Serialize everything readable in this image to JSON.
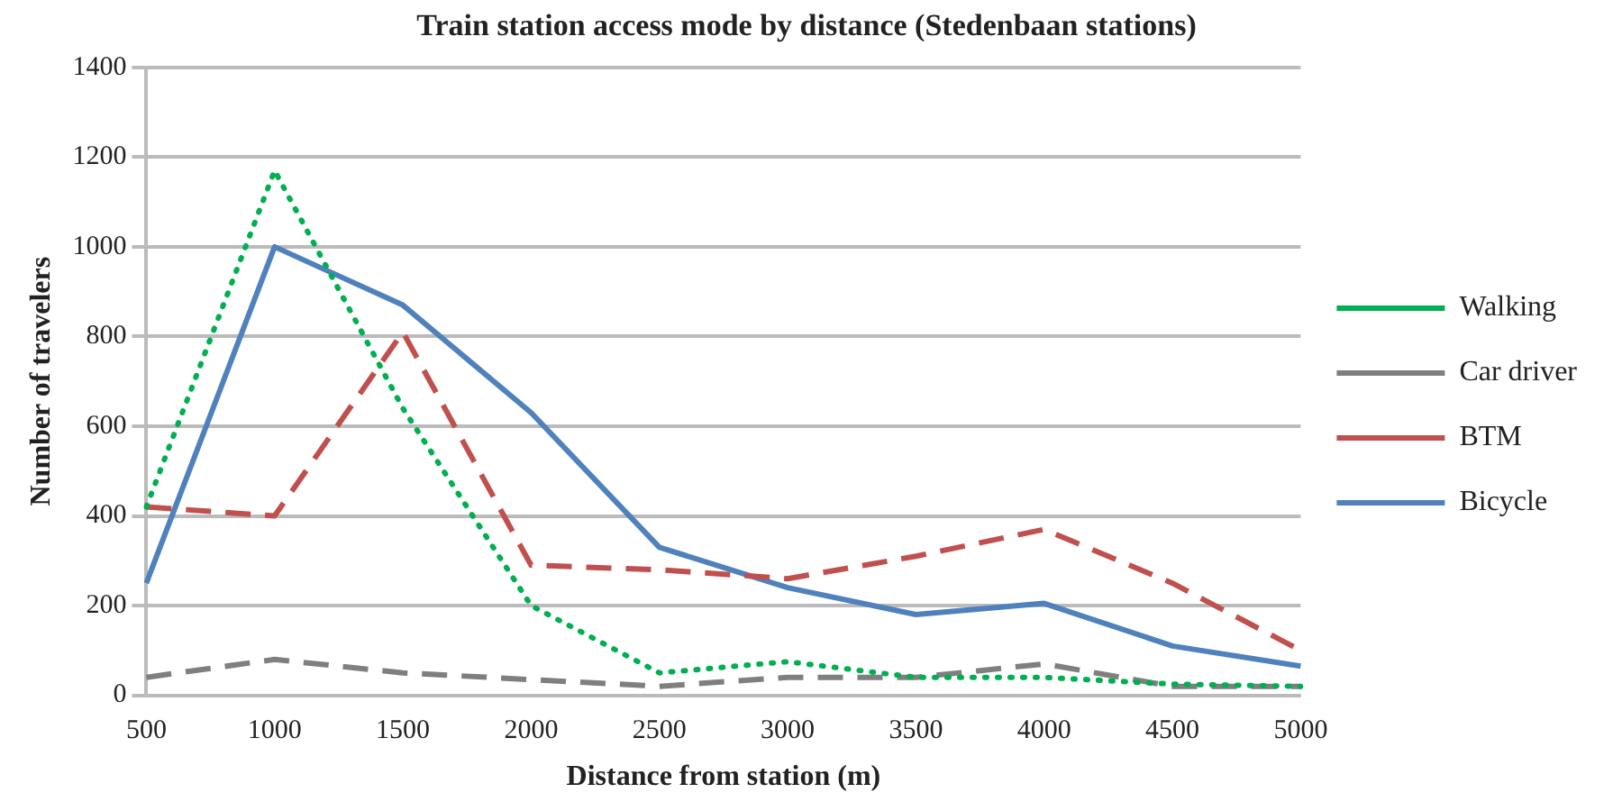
{
  "chart_data": {
    "type": "line",
    "title": "Train station access mode by distance (Stedenbaan stations)",
    "xlabel": "Distance from station (m)",
    "ylabel": "Number of travelers",
    "categories": [
      "500",
      "1000",
      "1500",
      "2000",
      "2500",
      "3000",
      "3500",
      "4000",
      "4500",
      "5000"
    ],
    "series": [
      {
        "name": "Walking",
        "color": "#00b050",
        "line_style": "dotted",
        "values": [
          420,
          1170,
          640,
          200,
          50,
          75,
          40,
          40,
          25,
          20
        ]
      },
      {
        "name": "Car driver",
        "color": "#7f7f7f",
        "line_style": "dashed",
        "values": [
          40,
          80,
          50,
          35,
          20,
          40,
          40,
          70,
          20,
          20
        ]
      },
      {
        "name": "BTM",
        "color": "#c0504d",
        "line_style": "dashed",
        "values": [
          420,
          400,
          810,
          290,
          280,
          260,
          310,
          370,
          250,
          100
        ]
      },
      {
        "name": "Bicycle",
        "color": "#4f81bd",
        "line_style": "solid",
        "values": [
          250,
          1000,
          870,
          630,
          330,
          240,
          180,
          205,
          110,
          65
        ]
      }
    ],
    "ylim": [
      0,
      1400
    ],
    "yticks": [
      0,
      200,
      400,
      600,
      800,
      1000,
      1200,
      1400
    ],
    "grid": "y",
    "legend": "right",
    "marker": "none"
  }
}
